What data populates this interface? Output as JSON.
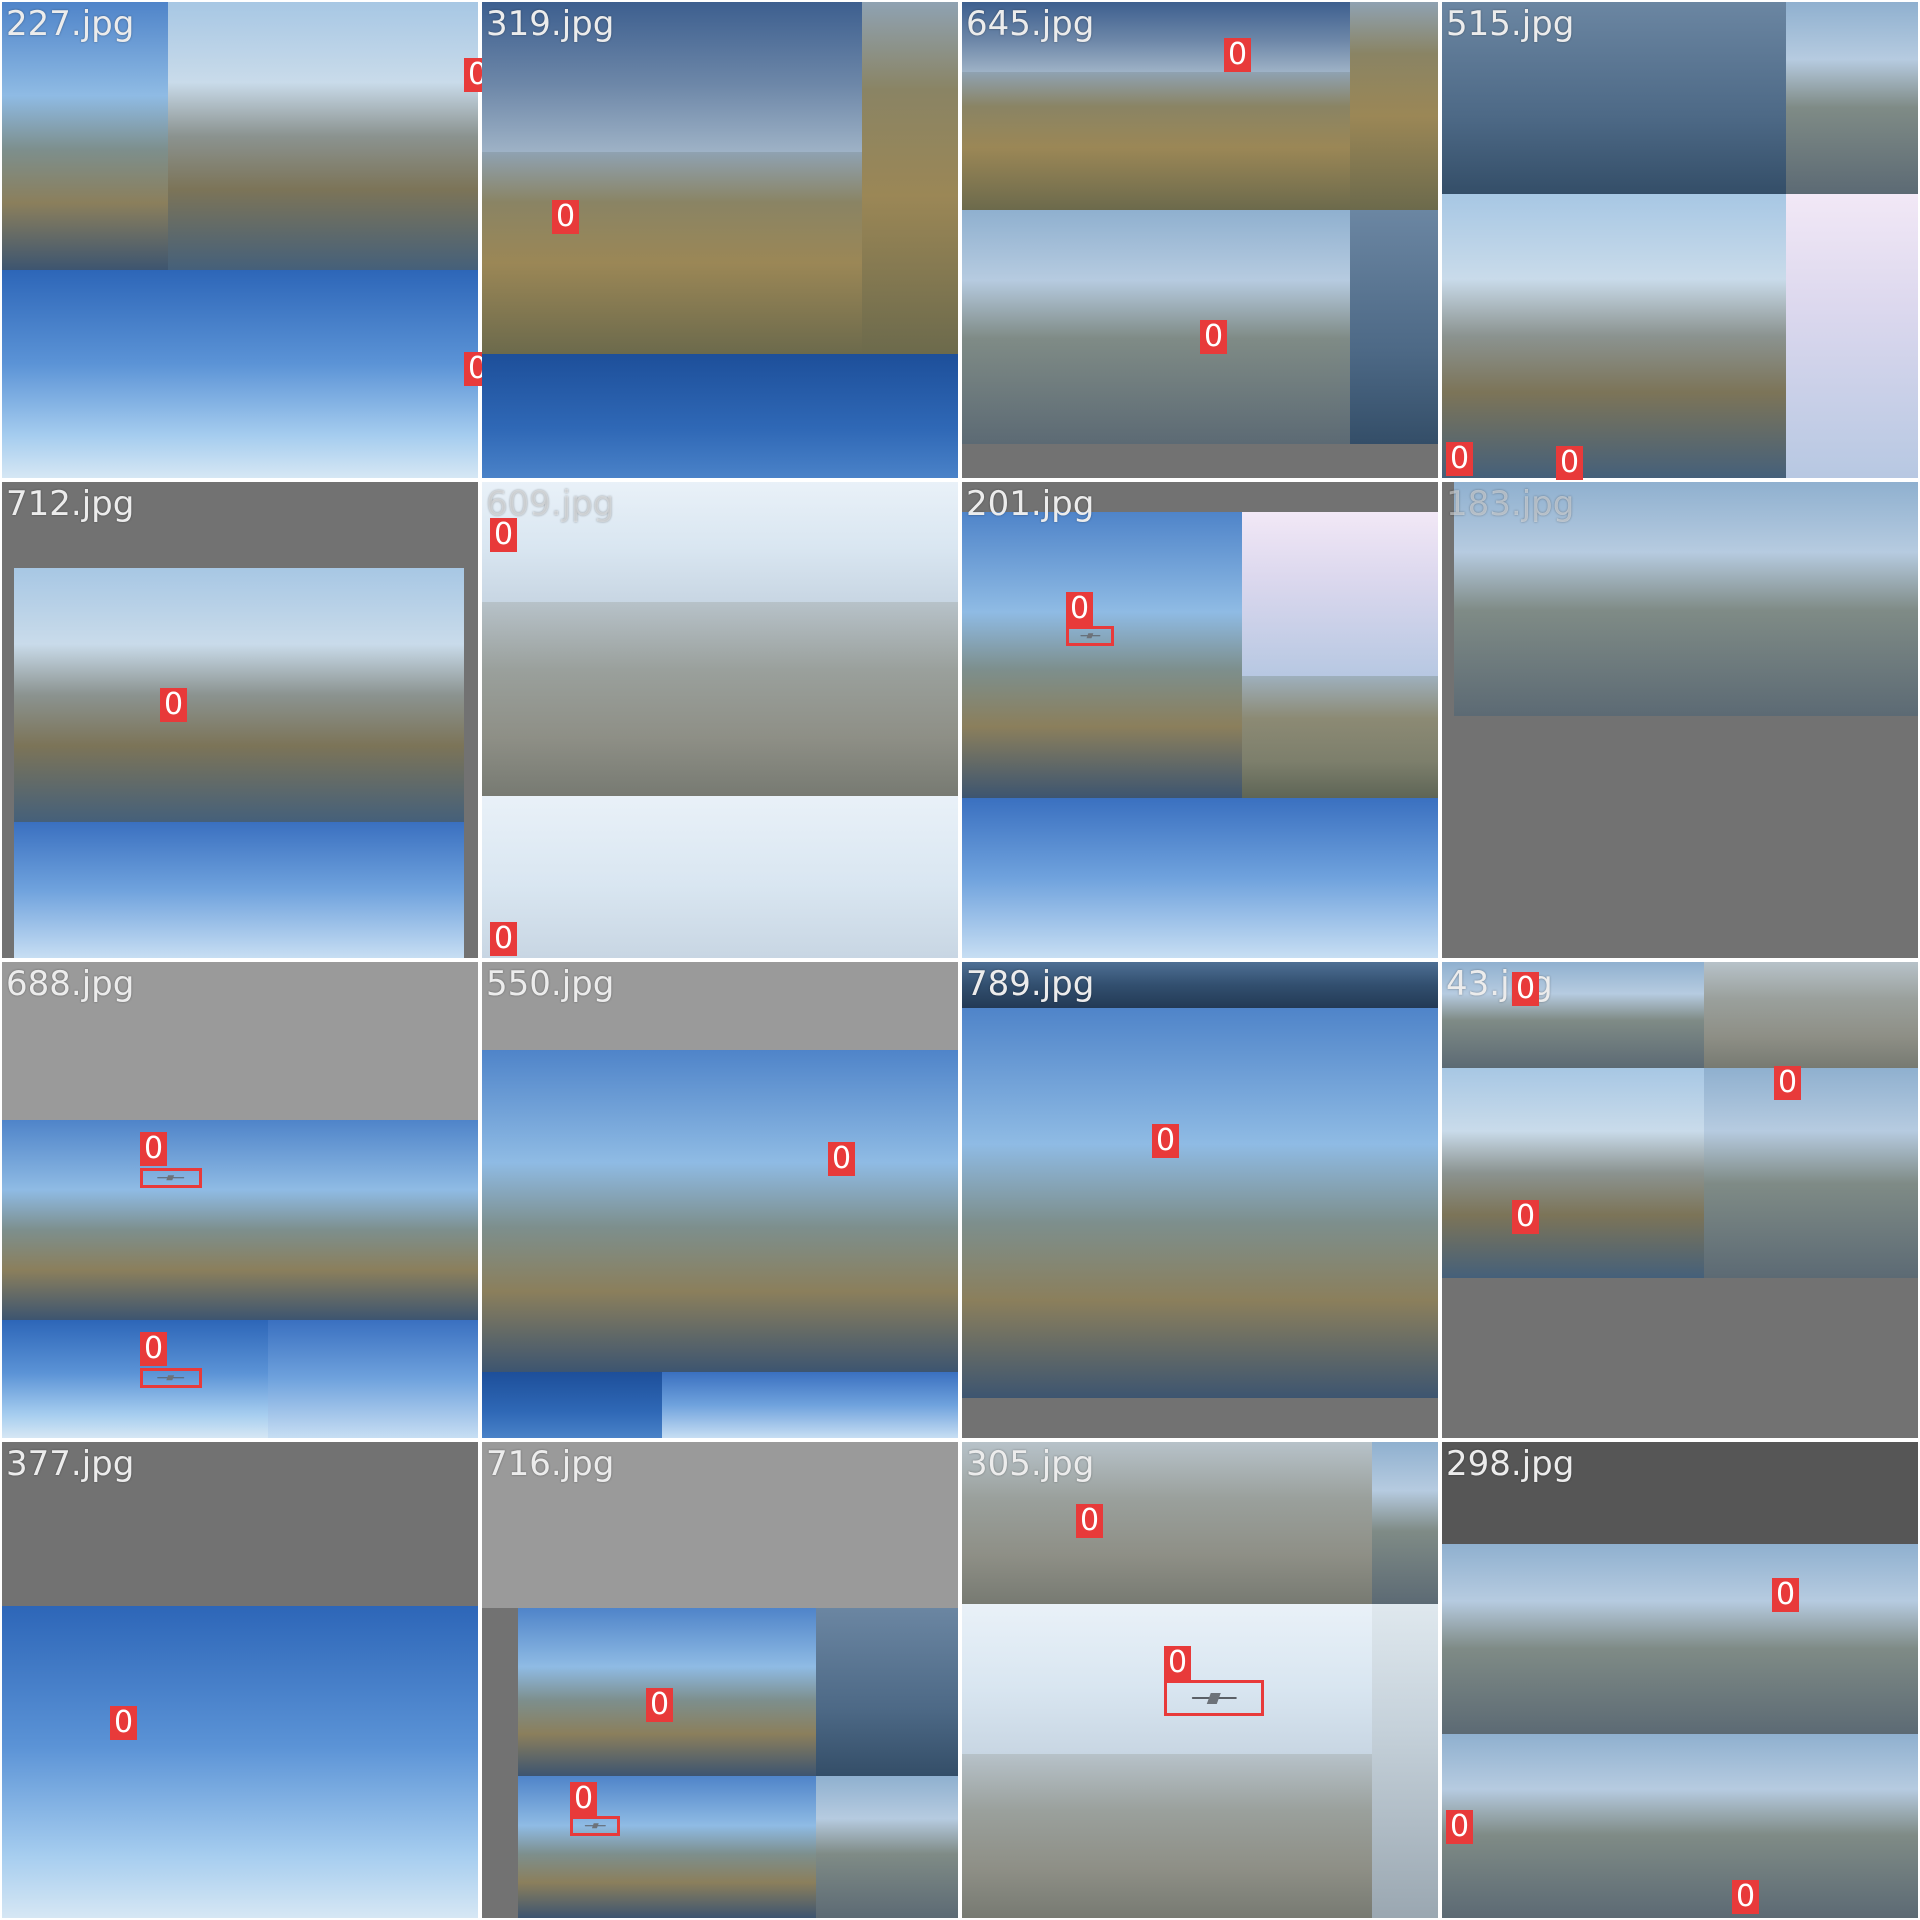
{
  "mosaic": {
    "tiles": [
      {
        "label": "227.jpg",
        "detections": [
          "0",
          "0"
        ]
      },
      {
        "label": "319.jpg",
        "detections": [
          "0"
        ]
      },
      {
        "label": "645.jpg",
        "detections": [
          "0",
          "0"
        ]
      },
      {
        "label": "515.jpg",
        "detections": [
          "0",
          "0"
        ]
      },
      {
        "label": "712.jpg",
        "detections": [
          "0"
        ]
      },
      {
        "label": "609.jpg",
        "detections": [
          "0",
          "0"
        ]
      },
      {
        "label": "201.jpg",
        "detections": [
          "0"
        ]
      },
      {
        "label": "183.jpg",
        "detections": []
      },
      {
        "label": "688.jpg",
        "detections": [
          "0",
          "0"
        ]
      },
      {
        "label": "550.jpg",
        "detections": [
          "0"
        ]
      },
      {
        "label": "789.jpg",
        "detections": [
          "0"
        ]
      },
      {
        "label": "43.jpg",
        "detections": [
          "0",
          "0",
          "0"
        ]
      },
      {
        "label": "377.jpg",
        "detections": [
          "0"
        ]
      },
      {
        "label": "716.jpg",
        "detections": [
          "0",
          "0"
        ]
      },
      {
        "label": "305.jpg",
        "detections": [
          "0",
          "0"
        ]
      },
      {
        "label": "298.jpg",
        "detections": [
          "0",
          "0",
          "0"
        ]
      }
    ]
  },
  "colors": {
    "detection_box": "#e83a3a",
    "label_text": "#ececec",
    "padding_grey": "#727272"
  }
}
